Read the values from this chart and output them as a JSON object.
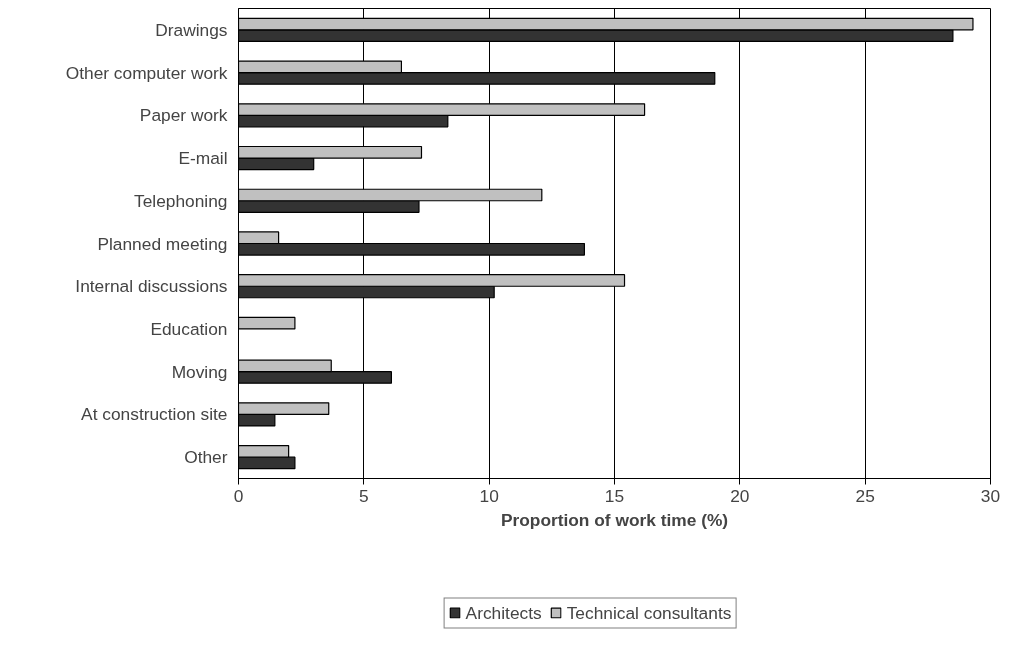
{
  "chart_data": {
    "type": "bar",
    "orientation": "horizontal",
    "xlabel": "Proportion of work time (%)",
    "categories": [
      "Drawings",
      "Other computer work",
      "Paper work",
      "E-mail",
      "Telephoning",
      "Planned meeting",
      "Internal discussions",
      "Education",
      "Moving",
      "At construction site",
      "Other"
    ],
    "series": [
      {
        "name": "Architects",
        "color": "#333333",
        "values": [
          28.5,
          19.0,
          8.35,
          3.0,
          7.2,
          13.8,
          10.2,
          null,
          6.1,
          1.45,
          2.25
        ]
      },
      {
        "name": "Technical consultants",
        "color": "#c0c0c0",
        "values": [
          29.3,
          6.5,
          16.2,
          7.3,
          12.1,
          1.6,
          15.4,
          2.25,
          3.7,
          3.6,
          2.0
        ]
      }
    ],
    "xlim": [
      0,
      30
    ],
    "xticks": [
      0,
      5,
      10,
      15,
      20,
      25,
      30
    ],
    "grid": "x",
    "legend": "bottom"
  }
}
